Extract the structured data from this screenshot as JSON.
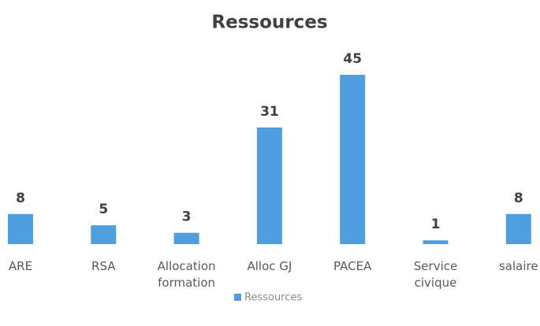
{
  "chart_data": {
    "type": "bar",
    "title": "Ressources",
    "categories": [
      "ARE",
      "RSA",
      "Allocation formation",
      "Alloc GJ",
      "PACEA",
      "Service civique",
      "salaire"
    ],
    "series": [
      {
        "name": "Ressources",
        "color": "#4f9fe0",
        "values": [
          8,
          5,
          3,
          31,
          45,
          1,
          8
        ]
      }
    ]
  }
}
